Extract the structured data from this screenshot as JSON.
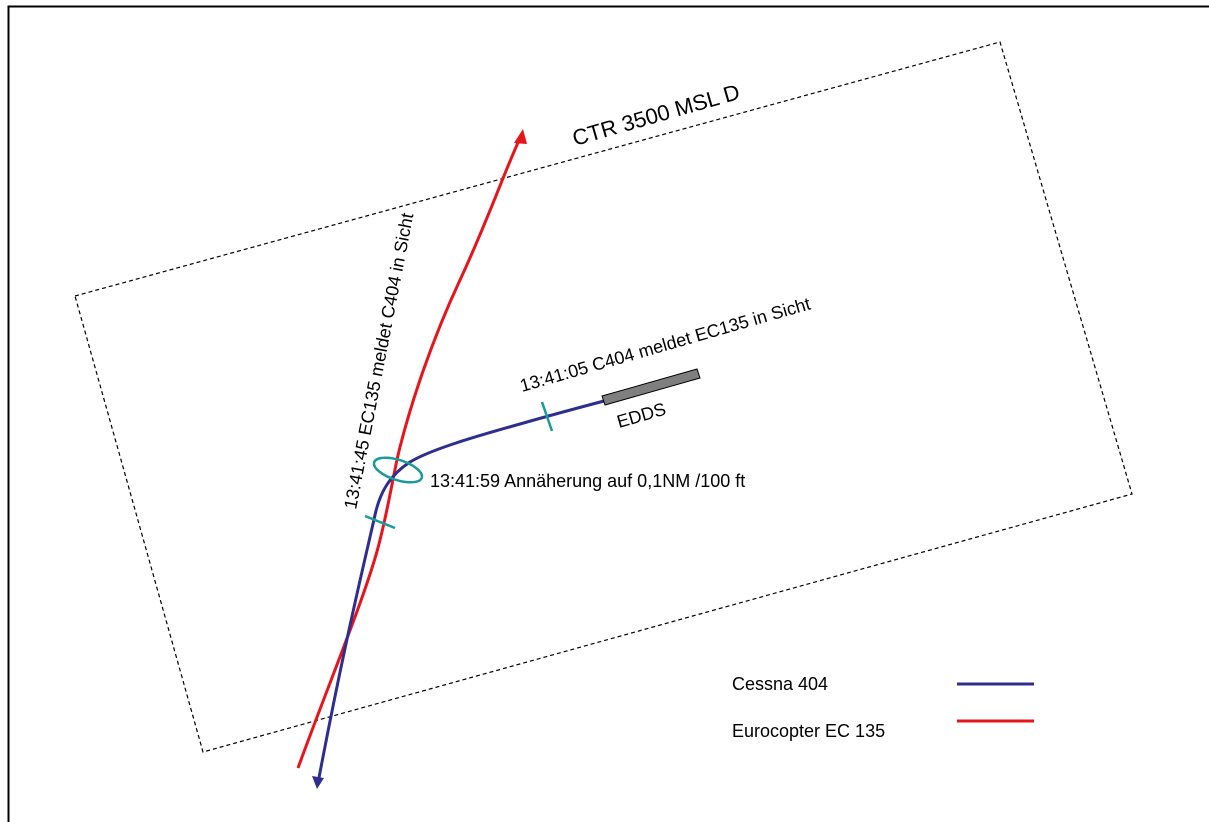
{
  "airspace": {
    "label": "CTR 3500 MSL D"
  },
  "runway": {
    "label": "EDDS"
  },
  "annotations": {
    "ec135_sight": "13:41:45 EC135 meldet C404 in Sicht",
    "c404_sight": "13:41:05 C404 meldet EC135 in Sicht",
    "approach": "13:41:59 Annäherung auf 0,1NM /100 ft"
  },
  "legend": [
    {
      "label": "Cessna 404",
      "color": "#2e2e8f"
    },
    {
      "label": "Eurocopter EC 135",
      "color": "#e8141c"
    }
  ],
  "colors": {
    "cessna_track": "#2e2e8f",
    "ec135_track": "#e8141c",
    "time_markers": "#1a9a9a",
    "runway_fill": "#7f7f7f"
  }
}
